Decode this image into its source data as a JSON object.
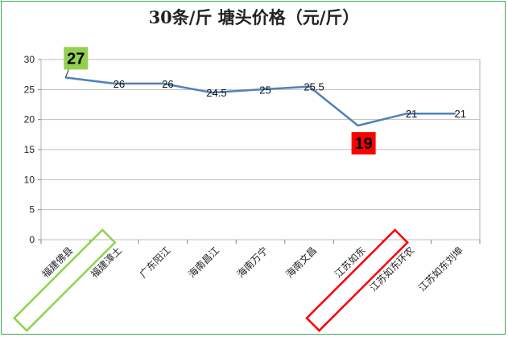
{
  "chart_data": {
    "type": "line",
    "title": "30条/斤    塘头价格（元/斤）",
    "categories": [
      "福建佛县",
      "福建漳土",
      "广东阳江",
      "海南昌江",
      "海南万宁",
      "海南文昌",
      "江苏如东",
      "江苏如东环农",
      "江苏如东刘埠"
    ],
    "series": [
      {
        "values": [
          27,
          26,
          26,
          24.5,
          25,
          25.5,
          19,
          21,
          21
        ]
      }
    ],
    "data_labels": [
      "27",
      "26",
      "26",
      "24.5",
      "25",
      "25.5",
      "19",
      "21",
      "21"
    ],
    "ylim": [
      0,
      30
    ],
    "yticks": [
      "0",
      "5",
      "10",
      "15",
      "20",
      "25",
      "30"
    ],
    "grid": true,
    "line_color": "#4f81bd",
    "highlights": [
      {
        "category_index": 0,
        "label": "27",
        "color": "#92d050",
        "text_color": "#000000"
      },
      {
        "category_index": 6,
        "label": "19",
        "color": "#ff0000",
        "text_color": "#000000"
      }
    ]
  }
}
